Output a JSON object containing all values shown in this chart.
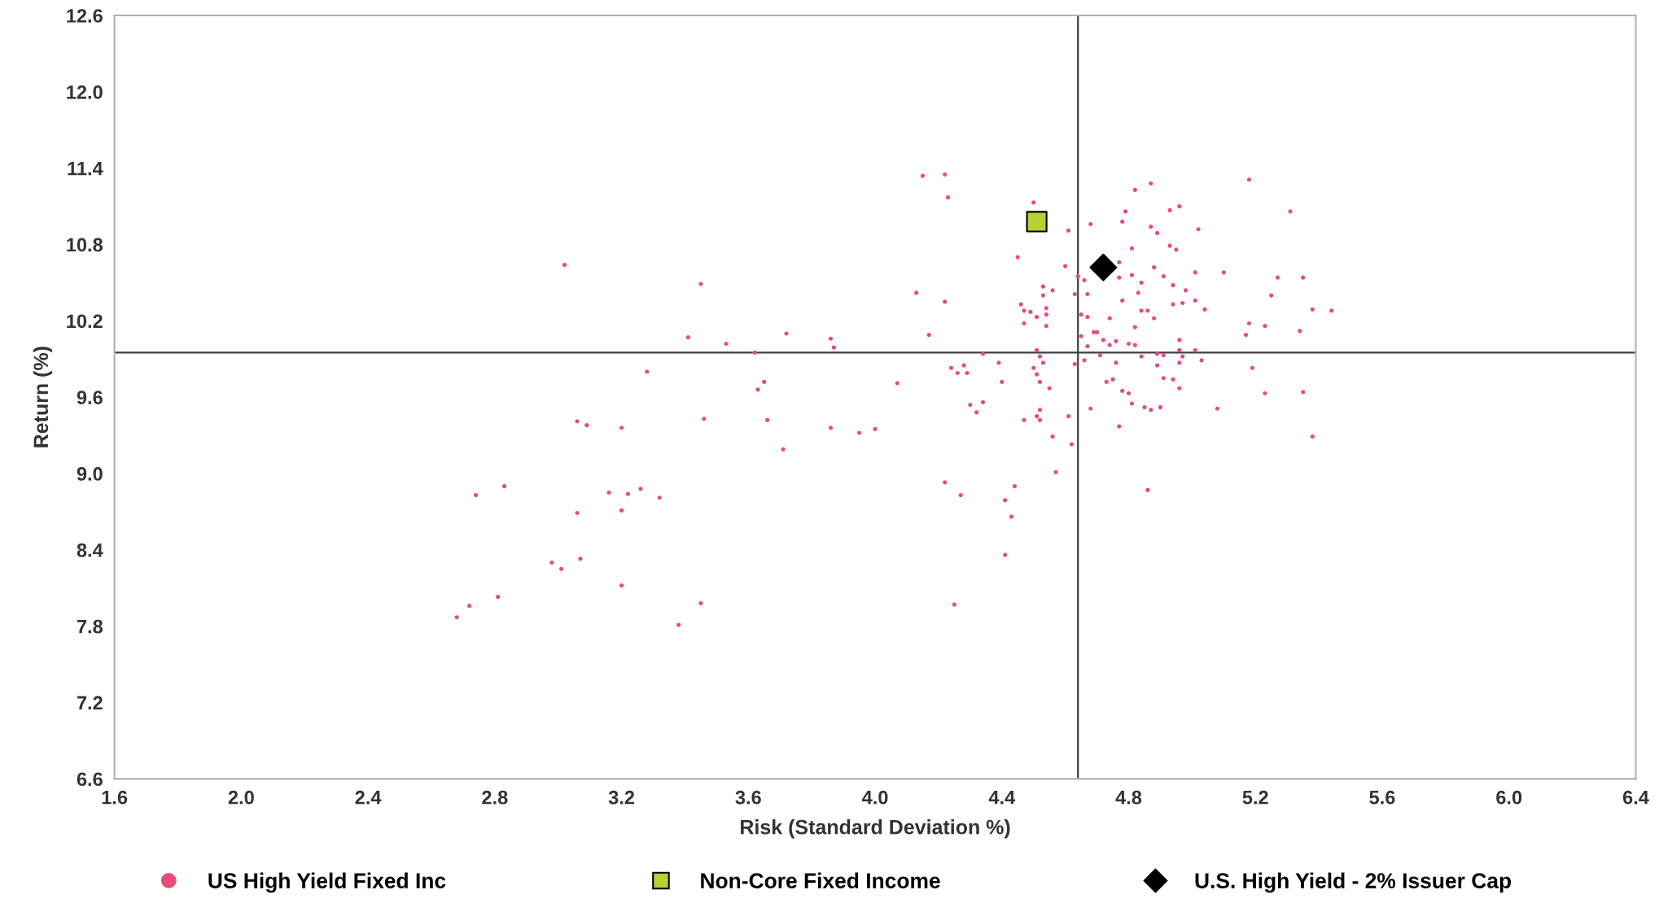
{
  "chart_data": {
    "type": "scatter",
    "xlabel": "Risk (Standard Deviation %)",
    "ylabel": "Return (%)",
    "xlim": [
      1.6,
      6.4
    ],
    "ylim": [
      6.6,
      12.6
    ],
    "xticks": [
      1.6,
      {
        "value": 2,
        "label": "2.0"
      },
      2.4,
      2.8,
      3.2,
      3.6,
      {
        "value": 4,
        "label": "4.0"
      },
      4.4,
      4.8,
      5.2,
      5.6,
      {
        "value": 6,
        "label": "6.0"
      },
      6.4
    ],
    "yticks": [
      6.6,
      7.2,
      7.8,
      8.4,
      {
        "value": 9,
        "label": "9.0"
      },
      9.6,
      10.2,
      10.8,
      11.4,
      {
        "value": 12,
        "label": "12.0"
      },
      12.6
    ],
    "grid": false,
    "legend": "bottom",
    "ref_lines": [
      {
        "axis": "x",
        "value": 4.64,
        "color": "#404040"
      },
      {
        "axis": "y",
        "value": 9.95,
        "color": "#404040"
      }
    ],
    "series": [
      {
        "name": "US High Yield Fixed Inc",
        "color": "#e94b7b",
        "marker": "circle",
        "x": [
          3.02,
          3.45,
          3.41,
          3.53,
          3.62,
          3.28,
          3.72,
          3.86,
          3.87,
          3.65,
          3.63,
          3.46,
          3.66,
          3.06,
          3.09,
          3.2,
          3.86,
          3.95,
          4.0,
          3.71,
          2.74,
          2.83,
          3.16,
          3.26,
          3.22,
          3.32,
          3.06,
          3.2,
          2.98,
          3.01,
          3.07,
          3.2,
          2.81,
          2.72,
          2.68,
          3.45,
          3.38,
          4.15,
          4.22,
          4.23,
          4.5,
          4.61,
          4.68,
          4.45,
          4.6,
          4.64,
          4.66,
          4.53,
          4.56,
          4.53,
          4.63,
          4.67,
          4.13,
          4.22,
          4.46,
          4.47,
          4.49,
          4.51,
          4.54,
          4.54,
          4.47,
          4.54,
          4.65,
          4.67,
          4.17,
          4.65,
          4.69,
          4.7,
          4.72,
          4.67,
          4.51,
          4.34,
          4.52,
          4.53,
          4.39,
          4.71,
          4.66,
          4.63,
          4.24,
          4.28,
          4.26,
          4.29,
          4.5,
          4.51,
          4.07,
          4.4,
          4.52,
          4.55,
          4.73,
          4.3,
          4.34,
          4.32,
          4.52,
          4.51,
          4.52,
          4.47,
          4.61,
          4.68,
          4.56,
          4.62,
          4.57,
          4.22,
          4.27,
          4.44,
          4.41,
          4.43,
          4.41,
          4.25,
          4.87,
          4.82,
          5.18,
          5.31,
          4.79,
          4.93,
          4.96,
          4.78,
          4.87,
          4.89,
          5.02,
          4.81,
          4.93,
          4.95,
          4.77,
          4.88,
          4.77,
          4.81,
          4.91,
          5.01,
          5.1,
          5.27,
          5.35,
          4.84,
          4.94,
          4.83,
          4.98,
          4.78,
          4.94,
          4.97,
          5.01,
          5.04,
          5.25,
          5.38,
          5.44,
          4.74,
          4.84,
          4.86,
          4.88,
          4.82,
          5.18,
          5.23,
          5.17,
          5.34,
          4.76,
          4.8,
          4.82,
          4.74,
          4.96,
          4.96,
          5.01,
          4.89,
          4.84,
          4.91,
          4.97,
          4.76,
          4.89,
          4.96,
          5.03,
          5.19,
          4.75,
          4.91,
          4.94,
          4.96,
          4.78,
          4.8,
          5.23,
          5.35,
          4.81,
          4.85,
          4.87,
          4.9,
          5.08,
          4.77,
          5.38,
          4.86
        ],
        "values": [
          10.64,
          10.49,
          10.07,
          10.02,
          9.95,
          9.8,
          10.1,
          10.06,
          9.99,
          9.72,
          9.66,
          9.43,
          9.42,
          9.41,
          9.38,
          9.36,
          9.36,
          9.32,
          9.35,
          9.19,
          8.83,
          8.9,
          8.85,
          8.88,
          8.84,
          8.81,
          8.69,
          8.71,
          8.3,
          8.25,
          8.33,
          8.12,
          8.03,
          7.96,
          7.87,
          7.98,
          7.81,
          11.34,
          11.35,
          11.17,
          11.13,
          10.91,
          10.96,
          10.7,
          10.63,
          10.55,
          10.52,
          10.47,
          10.44,
          10.4,
          10.41,
          10.41,
          10.42,
          10.35,
          10.33,
          10.28,
          10.27,
          10.23,
          10.3,
          10.25,
          10.18,
          10.16,
          10.25,
          10.23,
          10.09,
          10.08,
          10.11,
          10.11,
          10.05,
          10.0,
          9.97,
          9.94,
          9.92,
          9.87,
          9.87,
          9.93,
          9.89,
          9.86,
          9.83,
          9.85,
          9.79,
          9.79,
          9.83,
          9.78,
          9.71,
          9.72,
          9.72,
          9.67,
          9.72,
          9.54,
          9.56,
          9.48,
          9.5,
          9.45,
          9.42,
          9.42,
          9.45,
          9.51,
          9.29,
          9.23,
          9.01,
          8.93,
          8.83,
          8.9,
          8.79,
          8.66,
          8.36,
          7.97,
          11.28,
          11.23,
          11.31,
          11.06,
          11.06,
          11.07,
          11.1,
          10.98,
          10.94,
          10.89,
          10.92,
          10.77,
          10.79,
          10.76,
          10.66,
          10.62,
          10.54,
          10.56,
          10.55,
          10.58,
          10.58,
          10.54,
          10.54,
          10.5,
          10.48,
          10.42,
          10.44,
          10.36,
          10.33,
          10.34,
          10.36,
          10.29,
          10.4,
          10.29,
          10.28,
          10.22,
          10.28,
          10.28,
          10.22,
          10.15,
          10.18,
          10.16,
          10.09,
          10.12,
          10.04,
          10.02,
          10.01,
          10.01,
          10.05,
          9.97,
          9.97,
          9.94,
          9.92,
          9.93,
          9.92,
          9.87,
          9.85,
          9.87,
          9.89,
          9.83,
          9.74,
          9.75,
          9.74,
          9.67,
          9.65,
          9.63,
          9.63,
          9.64,
          9.55,
          9.52,
          9.5,
          9.52,
          9.51,
          9.37,
          9.29,
          8.87
        ]
      },
      {
        "name": "Non-Core Fixed Income",
        "color": "#b5d334",
        "marker": "square",
        "x": [
          4.51
        ],
        "values": [
          10.98
        ]
      },
      {
        "name": "U.S. High Yield - 2% Issuer Cap",
        "color": "#000000",
        "marker": "diamond",
        "x": [
          4.72
        ],
        "values": [
          10.62
        ]
      }
    ]
  }
}
